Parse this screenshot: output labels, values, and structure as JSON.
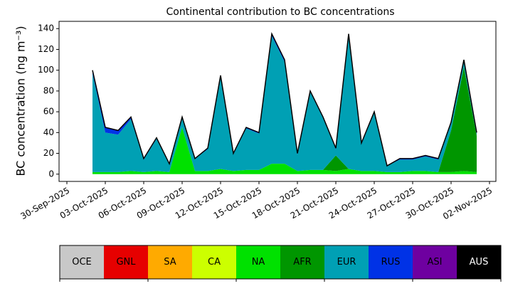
{
  "chart_data": {
    "type": "stacked_area",
    "title": "Continental contribution to BC concentrations",
    "y_label": "BC concentration (ng m⁻³)",
    "x": [
      "02-Oct-2025",
      "03-Oct-2025",
      "04-Oct-2025",
      "05-Oct-2025",
      "06-Oct-2025",
      "07-Oct-2025",
      "08-Oct-2025",
      "09-Oct-2025",
      "10-Oct-2025",
      "11-Oct-2025",
      "12-Oct-2025",
      "13-Oct-2025",
      "14-Oct-2025",
      "15-Oct-2025",
      "16-Oct-2025",
      "17-Oct-2025",
      "18-Oct-2025",
      "19-Oct-2025",
      "20-Oct-2025",
      "21-Oct-2025",
      "22-Oct-2025",
      "23-Oct-2025",
      "24-Oct-2025",
      "25-Oct-2025",
      "26-Oct-2025",
      "27-Oct-2025",
      "28-Oct-2025",
      "29-Oct-2025",
      "30-Oct-2025",
      "31-Oct-2025",
      "01-Nov-2025"
    ],
    "series": [
      {
        "name": "NA",
        "values": [
          2,
          2,
          2,
          3,
          2,
          3,
          2,
          45,
          3,
          3,
          5,
          3,
          4,
          4,
          10,
          10,
          3,
          4,
          4,
          3,
          5,
          3,
          3,
          2,
          2,
          3,
          3,
          2,
          2,
          3,
          2
        ]
      },
      {
        "name": "AFR",
        "values": [
          0,
          0,
          0,
          0,
          0,
          0,
          0,
          0,
          0,
          0,
          0,
          0,
          0,
          0,
          0,
          0,
          0,
          0,
          0,
          15,
          0,
          0,
          0,
          0,
          0,
          0,
          0,
          0,
          40,
          100,
          35
        ]
      },
      {
        "name": "EUR",
        "values": [
          95,
          38,
          36,
          50,
          12,
          31,
          8,
          10,
          12,
          21,
          88,
          16,
          40,
          35,
          123,
          98,
          16,
          75,
          50,
          6,
          128,
          26,
          56,
          6,
          12,
          11,
          14,
          12,
          7,
          6,
          3
        ]
      },
      {
        "name": "RUS",
        "values": [
          3,
          5,
          4,
          2,
          1,
          1,
          0,
          0,
          0,
          1,
          2,
          1,
          1,
          1,
          2,
          2,
          1,
          1,
          1,
          1,
          2,
          1,
          1,
          0,
          1,
          1,
          1,
          1,
          1,
          1,
          0
        ]
      }
    ],
    "xlim": [
      "29-Sep-2025",
      "03-Nov-2025"
    ],
    "xticks": [
      "30-Sep-2025",
      "03-Oct-2025",
      "06-Oct-2025",
      "09-Oct-2025",
      "12-Oct-2025",
      "15-Oct-2025",
      "18-Oct-2025",
      "21-Oct-2025",
      "24-Oct-2025",
      "27-Oct-2025",
      "30-Oct-2025",
      "02-Nov-2025"
    ],
    "ylim": [
      -7,
      147
    ],
    "yticks": [
      0,
      20,
      40,
      60,
      80,
      100,
      120,
      140
    ],
    "colorbar": {
      "labels": [
        "OCE",
        "GNL",
        "SA",
        "CA",
        "NA",
        "AFR",
        "EUR",
        "RUS",
        "ASI",
        "AUS"
      ],
      "colors": [
        "#c8c8c8",
        "#e60000",
        "#ffaa00",
        "#ccff00",
        "#00e100",
        "#009600",
        "#00a0b4",
        "#0032e6",
        "#6e00a0",
        "#000000"
      ]
    }
  }
}
